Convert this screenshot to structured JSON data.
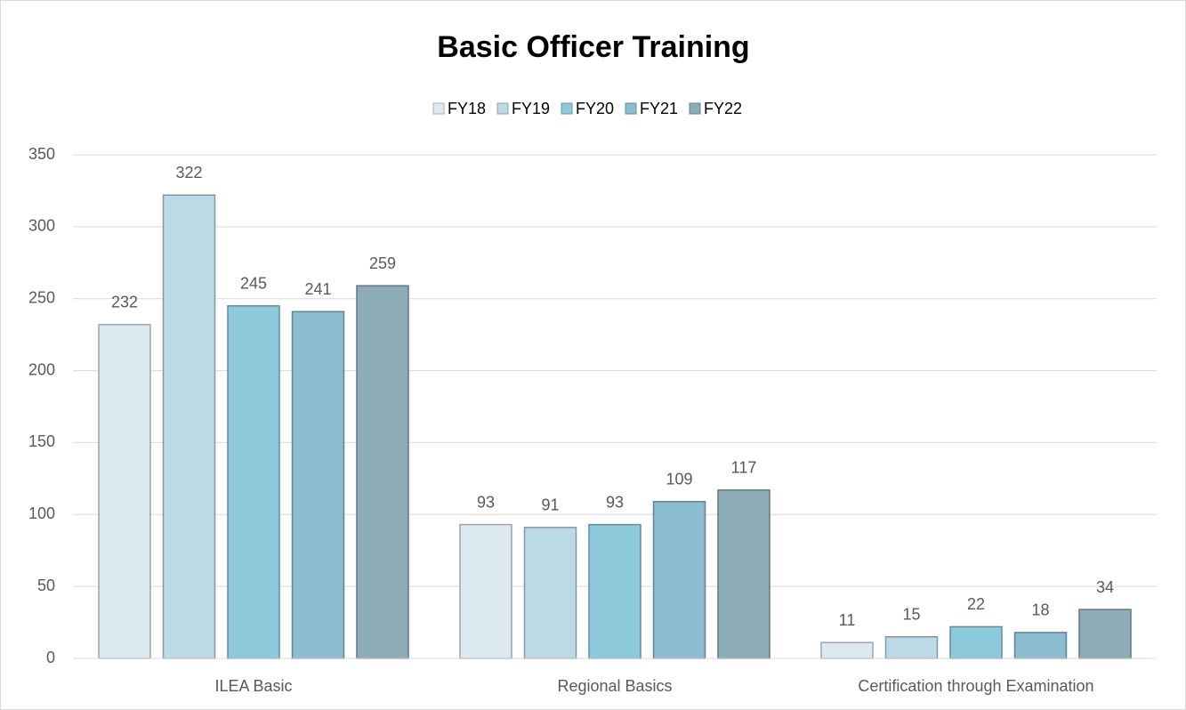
{
  "chart_data": {
    "type": "bar",
    "title": "Basic Officer Training",
    "categories": [
      "ILEA Basic",
      "Regional Basics",
      "Certification through Examination"
    ],
    "series": [
      {
        "name": "FY18",
        "color": "#dde9f1",
        "values": [
          232,
          93,
          11
        ]
      },
      {
        "name": "FY19",
        "color": "#bcd9e5",
        "values": [
          322,
          91,
          15
        ]
      },
      {
        "name": "FY20",
        "color": "#8fc9dc",
        "values": [
          245,
          93,
          22
        ]
      },
      {
        "name": "FY21",
        "color": "#8bbccf",
        "values": [
          241,
          109,
          18
        ]
      },
      {
        "name": "FY22",
        "color": "#8eacb8",
        "values": [
          259,
          117,
          34
        ]
      }
    ],
    "ylim": [
      0,
      350
    ],
    "yticks": [
      0,
      50,
      100,
      150,
      200,
      250,
      300,
      350
    ],
    "grid": true,
    "legend": "top"
  }
}
